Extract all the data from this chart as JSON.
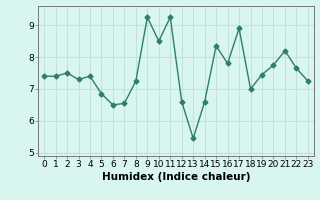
{
  "x": [
    0,
    1,
    2,
    3,
    4,
    5,
    6,
    7,
    8,
    9,
    10,
    11,
    12,
    13,
    14,
    15,
    16,
    17,
    18,
    19,
    20,
    21,
    22,
    23
  ],
  "y": [
    7.4,
    7.4,
    7.5,
    7.3,
    7.4,
    6.85,
    6.5,
    6.55,
    7.25,
    9.25,
    8.5,
    9.25,
    6.6,
    5.45,
    6.6,
    8.35,
    7.8,
    8.9,
    7.0,
    7.45,
    7.75,
    8.2,
    7.65,
    7.25
  ],
  "line_color": "#2e7d6e",
  "marker": "D",
  "markersize": 2.5,
  "linewidth": 1.0,
  "bg_color": "#d8f5f0",
  "grid_color": "#c0dcd8",
  "grid_major_color": "#aaaaaa",
  "xlabel": "Humidex (Indice chaleur)",
  "xlim": [
    -0.5,
    23.5
  ],
  "ylim": [
    4.9,
    9.6
  ],
  "yticks": [
    5,
    6,
    7,
    8,
    9
  ],
  "xtick_labels": [
    "0",
    "1",
    "2",
    "3",
    "4",
    "5",
    "6",
    "7",
    "8",
    "9",
    "10",
    "11",
    "12",
    "13",
    "14",
    "15",
    "16",
    "17",
    "18",
    "19",
    "20",
    "21",
    "22",
    "23"
  ],
  "tick_fontsize": 6.5,
  "label_fontsize": 7.5
}
